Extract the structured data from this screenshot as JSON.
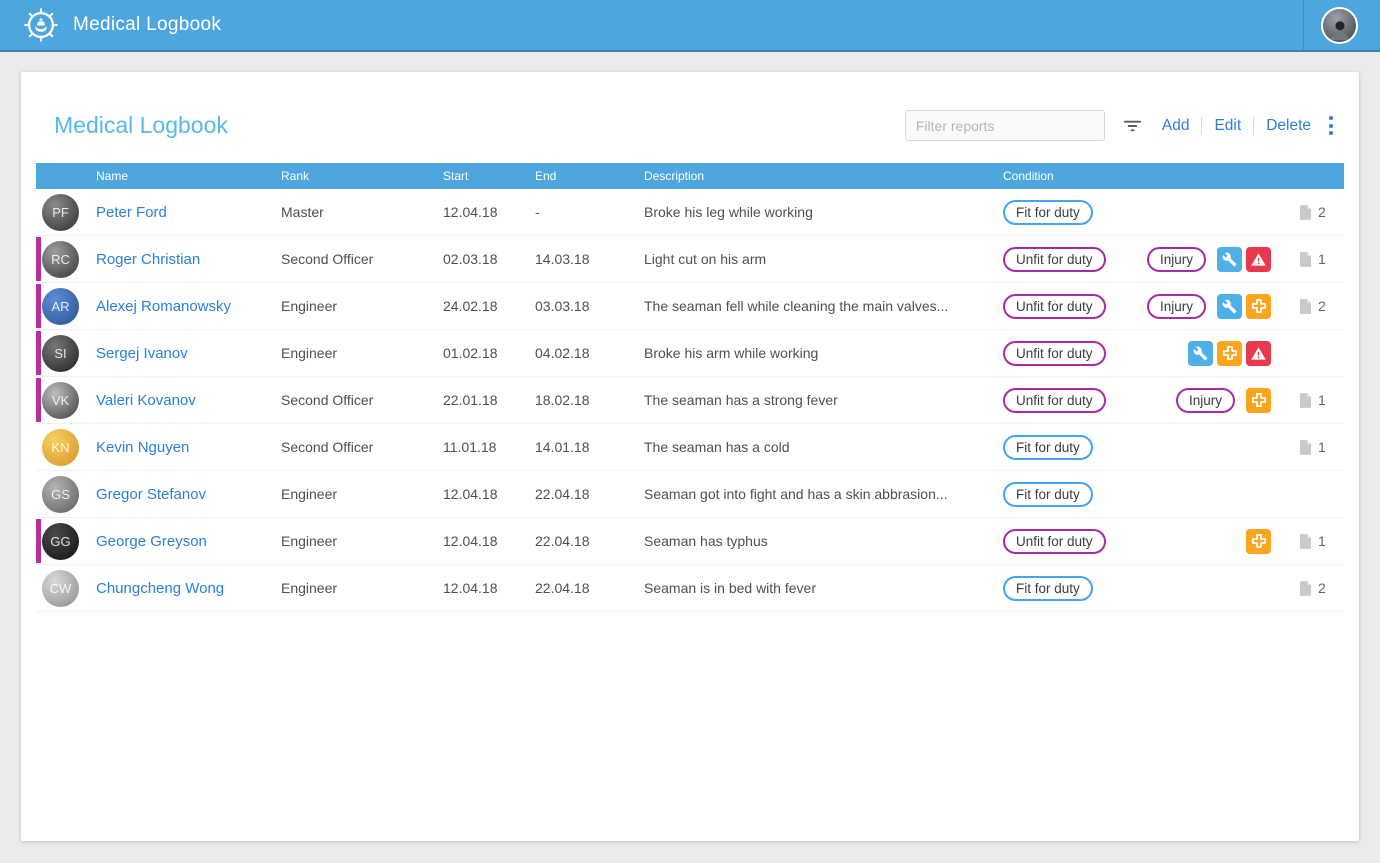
{
  "app_bar": {
    "title": "Medical Logbook"
  },
  "toolbar": {
    "title": "Medical Logbook",
    "filter_placeholder": "Filter reports",
    "actions": [
      "Add",
      "Edit",
      "Delete"
    ]
  },
  "table": {
    "columns": [
      "Name",
      "Rank",
      "Start",
      "End",
      "Description",
      "Condition"
    ],
    "injury_label": "Injury",
    "rows": [
      {
        "name": "Peter Ford",
        "rank": "Master",
        "start": "12.04.18",
        "end": "-",
        "description": "Broke his leg while working",
        "condition": "Fit for duty",
        "condition_type": "fit",
        "unfit_marker": false,
        "injury_badge": false,
        "flags": [],
        "doc_count": "2",
        "avatar_colors": [
          "#8a8a8a",
          "#2e2e2e"
        ]
      },
      {
        "name": "Roger Christian",
        "rank": "Second Officer",
        "start": "02.03.18",
        "end": "14.03.18",
        "description": "Light cut on his arm",
        "condition": "Unfit for duty",
        "condition_type": "unfit",
        "unfit_marker": true,
        "injury_badge": true,
        "flags": [
          "wrench",
          "warning"
        ],
        "doc_count": "1",
        "avatar_colors": [
          "#9e9e9e",
          "#333333"
        ]
      },
      {
        "name": "Alexej Romanowsky",
        "rank": "Engineer",
        "start": "24.02.18",
        "end": "03.03.18",
        "description": "The seaman fell while cleaning the main valves...",
        "condition": "Unfit for duty",
        "condition_type": "unfit",
        "unfit_marker": true,
        "injury_badge": true,
        "flags": [
          "wrench",
          "medical-cross"
        ],
        "doc_count": "2",
        "avatar_colors": [
          "#5b8fd6",
          "#2b4f8e"
        ]
      },
      {
        "name": "Sergej Ivanov",
        "rank": "Engineer",
        "start": "01.02.18",
        "end": "04.02.18",
        "description": "Broke his arm while working",
        "condition": "Unfit for duty",
        "condition_type": "unfit",
        "unfit_marker": true,
        "injury_badge": false,
        "flags": [
          "wrench",
          "medical-cross",
          "warning"
        ],
        "doc_count": "",
        "avatar_colors": [
          "#777777",
          "#1f1f1f"
        ]
      },
      {
        "name": "Valeri Kovanov",
        "rank": "Second Officer",
        "start": "22.01.18",
        "end": "18.02.18",
        "description": "The seaman has a strong fever",
        "condition": "Unfit for duty",
        "condition_type": "unfit",
        "unfit_marker": true,
        "injury_badge": true,
        "flags": [
          "medical-cross"
        ],
        "doc_count": "1",
        "avatar_colors": [
          "#bdbdbd",
          "#3c3c3c"
        ]
      },
      {
        "name": "Kevin Nguyen",
        "rank": "Second Officer",
        "start": "11.01.18",
        "end": "14.01.18",
        "description": "The seaman has a cold",
        "condition": "Fit for duty",
        "condition_type": "fit",
        "unfit_marker": false,
        "injury_badge": false,
        "flags": [],
        "doc_count": "1",
        "avatar_colors": [
          "#f4d35e",
          "#d98e2b"
        ]
      },
      {
        "name": "Gregor Stefanov",
        "rank": "Engineer",
        "start": "12.04.18",
        "end": "22.04.18",
        "description": "Seaman got into fight and has a skin abbrasion...",
        "condition": "Fit for duty",
        "condition_type": "fit",
        "unfit_marker": false,
        "injury_badge": false,
        "flags": [],
        "doc_count": "",
        "avatar_colors": [
          "#b5b5b5",
          "#5a5a5a"
        ]
      },
      {
        "name": "George Greyson",
        "rank": "Engineer",
        "start": "12.04.18",
        "end": "22.04.18",
        "description": "Seaman has typhus",
        "condition": "Unfit for duty",
        "condition_type": "unfit",
        "unfit_marker": true,
        "injury_badge": false,
        "flags": [
          "medical-cross"
        ],
        "doc_count": "1",
        "avatar_colors": [
          "#4a4a4a",
          "#111111"
        ]
      },
      {
        "name": "Chungcheng Wong",
        "rank": "Engineer",
        "start": "12.04.18",
        "end": "22.04.18",
        "description": "Seaman is in bed with fever",
        "condition": "Fit for duty",
        "condition_type": "fit",
        "unfit_marker": false,
        "injury_badge": false,
        "flags": [],
        "doc_count": "2",
        "avatar_colors": [
          "#d9d9d9",
          "#8c8c8c"
        ]
      }
    ]
  },
  "colors": {
    "app_bar": "#4da6dd",
    "accent_blue": "#56b9e9",
    "link_blue": "#2980d9",
    "action_blue": "#2d7fd6",
    "fit_border": "#42a5f5",
    "unfit_border": "#a62ba5",
    "unfit_marker": "#be2da0",
    "flag_wrench": "#4fb0e8",
    "flag_medical_cross": "#fba41c",
    "flag_warning": "#e8394f"
  }
}
